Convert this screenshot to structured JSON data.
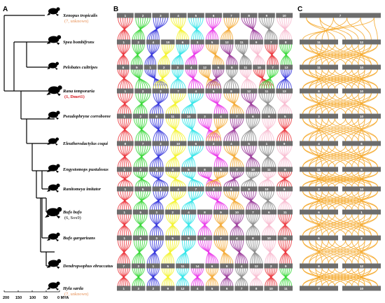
{
  "panels": {
    "a": "A",
    "b": "B",
    "c": "C"
  },
  "species": [
    {
      "name": "Xenopus tropicalis",
      "note": "(7, unknown)",
      "note_style": "orange"
    },
    {
      "name": "Spea bombifrons",
      "note": "",
      "note_style": ""
    },
    {
      "name": "Pelobates cultripes",
      "note": "",
      "note_style": ""
    },
    {
      "name": "Rana temporaria",
      "note": "(1, Dmrt1)",
      "note_style": "red"
    },
    {
      "name": "Pseudophryne corroboree",
      "note": "",
      "note_style": ""
    },
    {
      "name": "Eleutherodactylus coqui",
      "note": "",
      "note_style": ""
    },
    {
      "name": "Engystomops pustulosus",
      "note": "",
      "note_style": ""
    },
    {
      "name": "Ranitomeya imitator",
      "note": "",
      "note_style": ""
    },
    {
      "name": "Bufo bufo",
      "note": "(6, Sox9)",
      "note_style": "black"
    },
    {
      "name": "Bufo gargarizans",
      "note": "",
      "note_style": ""
    },
    {
      "name": "Dendropsophus ebraccatus",
      "note": "",
      "note_style": ""
    },
    {
      "name": "Hyla sarda",
      "note": "(7, unknown)",
      "note_style": "orange"
    }
  ],
  "time_axis": {
    "ticks": [
      "200",
      "150",
      "100",
      "50",
      "0 MYA"
    ]
  },
  "colors": {
    "bar": "#6d6d6d",
    "chr_palette": [
      "#e8141c",
      "#17d117",
      "#1414d6",
      "#f2f20a",
      "#10e0e6",
      "#e614e6",
      "#f29c14",
      "#8a1a8a",
      "#7a7a7a",
      "#f7b0c8"
    ],
    "panel_c": "#f5a623"
  },
  "panel_b": {
    "rows": [
      [
        "1",
        "2",
        "3",
        "4",
        "5",
        "6",
        "7",
        "8",
        "9",
        "10"
      ],
      [
        "1",
        "2",
        "4",
        "10",
        "6",
        "3",
        "5",
        "12",
        "11",
        "9",
        "7",
        "8"
      ],
      [
        "6",
        "9",
        "1",
        "2",
        "3",
        "4",
        "12",
        "5",
        "8",
        "11",
        "10",
        "7",
        "13"
      ],
      [
        "1",
        "2",
        "3",
        "7",
        "4",
        "5",
        "8",
        "12",
        "11",
        "13"
      ],
      [
        "1",
        "2",
        "8",
        "11",
        "10",
        "3",
        "4",
        "7",
        "6",
        "9",
        "5"
      ],
      [
        "8",
        "7",
        "3",
        "10",
        "6",
        "2",
        "4",
        "5",
        "1",
        "9"
      ],
      [
        "1",
        "2",
        "3",
        "4",
        "5",
        "8",
        "6",
        "7",
        "10",
        "11",
        "9"
      ],
      [
        "1",
        "5",
        "2",
        "4",
        "7",
        "3",
        "6",
        "8",
        "10",
        "9"
      ],
      [
        "1",
        "5",
        "3",
        "2",
        "4",
        "8",
        "9",
        "10",
        "7",
        "6",
        "11"
      ],
      [
        "1",
        "6",
        "3",
        "5",
        "9",
        "2",
        "7",
        "4",
        "8",
        "10",
        "11"
      ],
      [
        "7",
        "3",
        "1",
        "5",
        "11",
        "14",
        "6",
        "8",
        "4",
        "12",
        "2",
        "9"
      ],
      [
        "1",
        "3",
        "2",
        "9",
        "12",
        "4",
        "5",
        "6",
        "7",
        "8",
        "10",
        "11"
      ]
    ]
  },
  "panel_c": {
    "rows": [
      [
        "7"
      ],
      [
        "11",
        "12"
      ],
      [
        "11",
        "10"
      ],
      [
        "8",
        "10"
      ],
      [
        "3",
        "10"
      ],
      [
        "4",
        "6"
      ],
      [
        "11",
        "6"
      ],
      [
        "2",
        "10"
      ],
      [
        "6",
        "1"
      ],
      [
        "6",
        "2"
      ],
      [
        "8",
        "12"
      ],
      [
        "7",
        "10"
      ]
    ]
  }
}
